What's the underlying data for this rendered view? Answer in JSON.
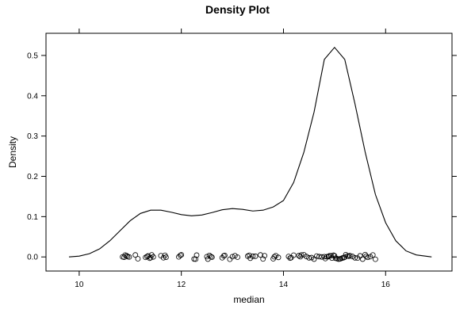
{
  "chart_data": {
    "type": "density",
    "title": "Density Plot",
    "xlabel": "median",
    "ylabel": "Density",
    "xlim": [
      9.35,
      17.3
    ],
    "ylim": [
      -0.035,
      0.555
    ],
    "x_ticks": [
      "10",
      "12",
      "14",
      "16"
    ],
    "x_tick_values": [
      10,
      12,
      14,
      16
    ],
    "y_ticks": [
      "0.0",
      "0.1",
      "0.2",
      "0.3",
      "0.4",
      "0.5"
    ],
    "y_tick_values": [
      0.0,
      0.1,
      0.2,
      0.3,
      0.4,
      0.5
    ],
    "grid": false,
    "density_curve": {
      "x": [
        9.8,
        10.0,
        10.2,
        10.4,
        10.6,
        10.8,
        11.0,
        11.2,
        11.4,
        11.6,
        11.8,
        12.0,
        12.2,
        12.4,
        12.6,
        12.8,
        13.0,
        13.2,
        13.4,
        13.6,
        13.8,
        14.0,
        14.2,
        14.4,
        14.6,
        14.8,
        15.0,
        15.2,
        15.4,
        15.6,
        15.8,
        16.0,
        16.2,
        16.4,
        16.6,
        16.9
      ],
      "y": [
        0.0,
        0.002,
        0.008,
        0.02,
        0.04,
        0.065,
        0.09,
        0.108,
        0.116,
        0.116,
        0.111,
        0.105,
        0.102,
        0.104,
        0.11,
        0.117,
        0.12,
        0.118,
        0.114,
        0.116,
        0.124,
        0.14,
        0.185,
        0.26,
        0.36,
        0.49,
        0.52,
        0.49,
        0.38,
        0.26,
        0.155,
        0.085,
        0.04,
        0.015,
        0.005,
        0.0
      ]
    },
    "rug_points": [
      10.85,
      10.88,
      10.9,
      10.93,
      10.95,
      10.98,
      11.1,
      11.15,
      11.3,
      11.33,
      11.35,
      11.38,
      11.4,
      11.42,
      11.45,
      11.6,
      11.65,
      11.68,
      11.7,
      11.95,
      11.98,
      12.0,
      12.25,
      12.28,
      12.3,
      12.5,
      12.52,
      12.55,
      12.58,
      12.6,
      12.8,
      12.83,
      12.85,
      12.95,
      13.0,
      13.05,
      13.1,
      13.3,
      13.33,
      13.35,
      13.4,
      13.45,
      13.55,
      13.6,
      13.63,
      13.8,
      13.82,
      13.85,
      13.9,
      14.1,
      14.13,
      14.15,
      14.2,
      14.3,
      14.33,
      14.35,
      14.4,
      14.45,
      14.5,
      14.55,
      14.6,
      14.65,
      14.7,
      14.75,
      14.8,
      14.82,
      14.85,
      14.88,
      14.9,
      14.93,
      14.95,
      14.98,
      15.0,
      15.02,
      15.05,
      15.08,
      15.1,
      15.12,
      15.15,
      15.18,
      15.2,
      15.22,
      15.25,
      15.28,
      15.3,
      15.35,
      15.4,
      15.45,
      15.5,
      15.55,
      15.6,
      15.62,
      15.65,
      15.7,
      15.75,
      15.8
    ]
  }
}
